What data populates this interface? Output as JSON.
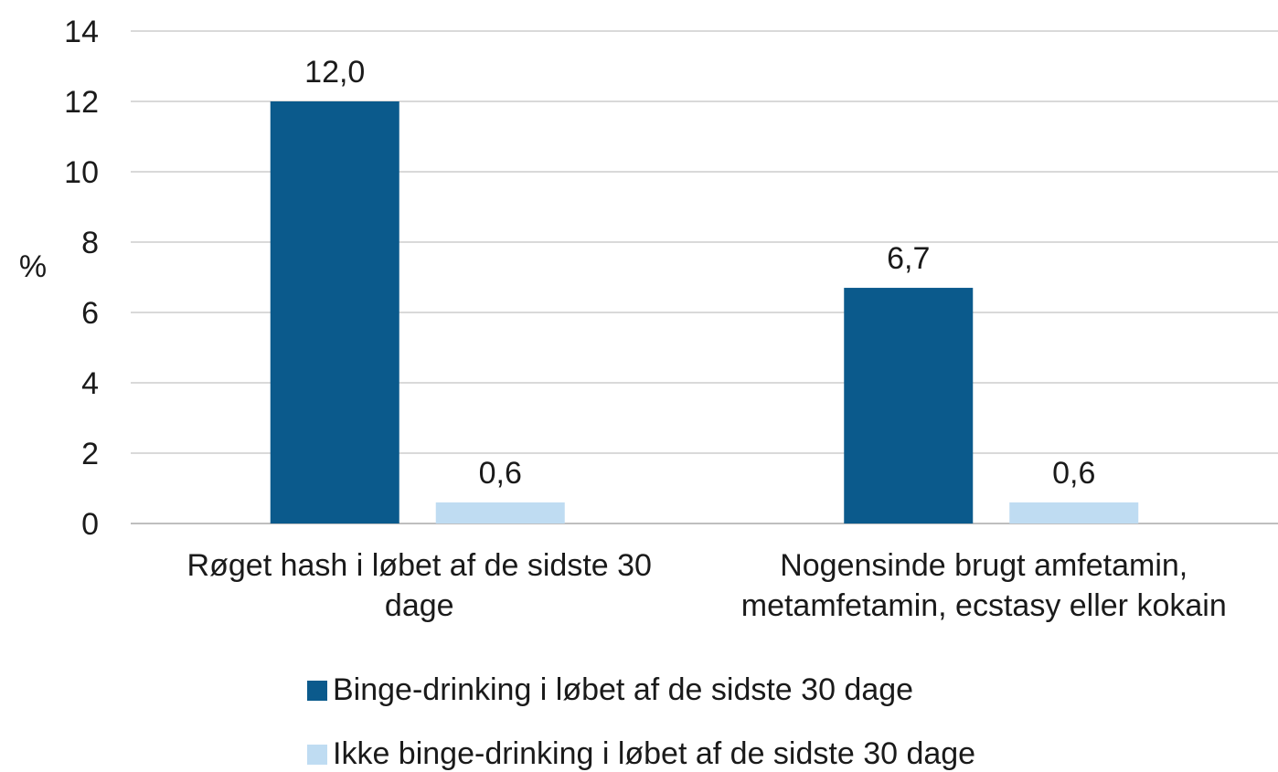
{
  "chart_data": {
    "type": "bar",
    "title": "",
    "xlabel": "",
    "ylabel": "%",
    "ylim": [
      0,
      14
    ],
    "yticks": [
      "0",
      "2",
      "4",
      "6",
      "8",
      "10",
      "12",
      "14"
    ],
    "grid": true,
    "legend_position": "bottom",
    "categories": [
      [
        "Røget hash i løbet af de sidste 30",
        "dage"
      ],
      [
        "Nogensinde brugt amfetamin,",
        "metamfetamin, ecstasy eller kokain"
      ]
    ],
    "series": [
      {
        "name": "Binge-drinking i løbet af de sidste 30 dage",
        "values": [
          12.0,
          6.7
        ],
        "labels": [
          "12,0",
          "6,7"
        ],
        "color": "#0b5a8c"
      },
      {
        "name": "Ikke binge-drinking i løbet af de sidste 30 dage",
        "values": [
          0.6,
          0.6
        ],
        "labels": [
          "0,6",
          "0,6"
        ],
        "color": "#bfdcf2"
      }
    ]
  }
}
